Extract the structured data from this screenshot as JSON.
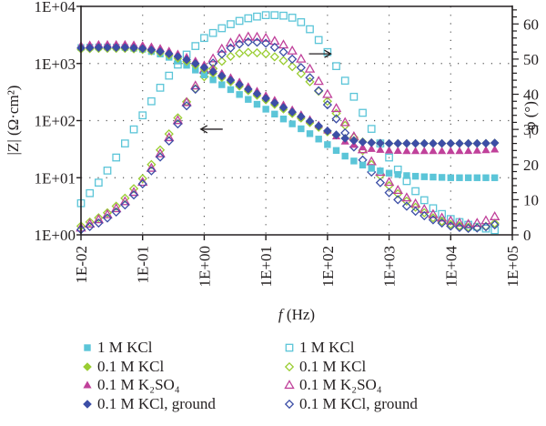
{
  "chart_data": {
    "type": "scatter",
    "title": "",
    "xlabel": "f (Hz)",
    "ylabel_left": "|Z| (Ω·cm²)",
    "ylabel_right": "−φ (°)",
    "x_scale": "log",
    "y_left_scale": "log",
    "xlim": [
      0.01,
      100000
    ],
    "ylim_left": [
      1,
      10000
    ],
    "ylim_right": [
      0,
      65
    ],
    "x_tick_labels": [
      "1E-02",
      "1E-01",
      "1E+00",
      "1E+01",
      "1E+02",
      "1E+03",
      "1E+04",
      "1E+05"
    ],
    "y_left_tick_labels": [
      "1E+00",
      "1E+01",
      "1E+02",
      "1E+03",
      "1E+04"
    ],
    "y_right_tick_labels": [
      "0",
      "10",
      "20",
      "30",
      "40",
      "50",
      "60"
    ],
    "y_right_ticks": [
      0,
      10,
      20,
      30,
      40,
      50,
      60
    ],
    "grid": "dotted",
    "annotations": [
      {
        "text": "←",
        "meaning": "arrow pointing to left axis (|Z| curves)",
        "at_log_f": 0.3,
        "at_log_z": 1.85
      },
      {
        "text": "→",
        "meaning": "arrow pointing to right axis (phase curves)",
        "at_log_f": 1.7,
        "at_phi": 51.5
      }
    ],
    "log_f": [
      -2.0,
      -1.75,
      -1.5,
      -1.25,
      -1.0,
      -0.75,
      -0.5,
      -0.25,
      0.0,
      0.25,
      0.5,
      0.75,
      1.0,
      1.25,
      1.5,
      1.75,
      2.0,
      2.25,
      2.5,
      2.75,
      3.0,
      3.25,
      3.5,
      3.75,
      4.0,
      4.25,
      4.5,
      4.75
    ],
    "series": [
      {
        "name": "1 M KCl",
        "quantity": "|Z|",
        "axis": "left",
        "marker": "square-filled",
        "color": "#5bc5d8",
        "log_values": [
          3.28,
          3.29,
          3.29,
          3.28,
          3.25,
          3.18,
          3.08,
          2.95,
          2.8,
          2.65,
          2.5,
          2.35,
          2.2,
          2.05,
          1.9,
          1.75,
          1.58,
          1.4,
          1.25,
          1.15,
          1.08,
          1.04,
          1.02,
          1.01,
          1.0,
          1.0,
          1.0,
          1.0
        ]
      },
      {
        "name": "0.1 M KCl",
        "quantity": "|Z|",
        "axis": "left",
        "marker": "diamond-filled",
        "color": "#9acd32",
        "log_values": [
          3.25,
          3.26,
          3.26,
          3.26,
          3.24,
          3.2,
          3.12,
          3.02,
          2.9,
          2.77,
          2.64,
          2.5,
          2.36,
          2.22,
          2.08,
          1.94,
          1.8,
          1.7,
          1.64,
          1.61,
          1.6,
          1.6,
          1.6,
          1.6,
          1.6,
          1.6,
          1.6,
          1.61
        ]
      },
      {
        "name": "0.1 M K2SO4",
        "quantity": "|Z|",
        "axis": "left",
        "marker": "triangle-filled",
        "color": "#c0419a",
        "log_values": [
          3.32,
          3.34,
          3.34,
          3.34,
          3.32,
          3.28,
          3.2,
          3.1,
          2.98,
          2.85,
          2.72,
          2.58,
          2.44,
          2.3,
          2.15,
          2.0,
          1.83,
          1.65,
          1.55,
          1.5,
          1.48,
          1.47,
          1.47,
          1.47,
          1.47,
          1.47,
          1.48,
          1.5
        ]
      },
      {
        "name": "0.1 M KCl, ground",
        "quantity": "|Z|",
        "axis": "left",
        "marker": "diamond-filled",
        "color": "#3c4ea6",
        "log_values": [
          3.27,
          3.28,
          3.28,
          3.28,
          3.26,
          3.22,
          3.15,
          3.05,
          2.93,
          2.8,
          2.67,
          2.53,
          2.39,
          2.25,
          2.11,
          1.97,
          1.82,
          1.7,
          1.63,
          1.61,
          1.6,
          1.6,
          1.6,
          1.6,
          1.6,
          1.6,
          1.6,
          1.61
        ]
      },
      {
        "name": "1 M KCl",
        "quantity": "-phi",
        "axis": "right",
        "marker": "square-open",
        "color": "#5bc5d8",
        "values": [
          9,
          14,
          20,
          27,
          34,
          41,
          47,
          52,
          56,
          58.5,
          60.5,
          61.8,
          62.5,
          62.5,
          61.5,
          58,
          52,
          45,
          37,
          29,
          22,
          16,
          11,
          7,
          4.5,
          3,
          2,
          1.2
        ]
      },
      {
        "name": "0.1 M KCl",
        "quantity": "-phi",
        "axis": "right",
        "marker": "diamond-open",
        "color": "#9acd32",
        "values": [
          2.5,
          4.5,
          7,
          11,
          16,
          23,
          31,
          39,
          45,
          49,
          51.5,
          52,
          51.5,
          50,
          47,
          43,
          38,
          32,
          26,
          19,
          14,
          10,
          7,
          4.5,
          3,
          2.2,
          2,
          3.5
        ]
      },
      {
        "name": "0.1 M K2SO4",
        "quantity": "-phi",
        "axis": "right",
        "marker": "triangle-open",
        "color": "#c0419a",
        "values": [
          2,
          4,
          6.5,
          10,
          15,
          22,
          30,
          39,
          47,
          52.5,
          55.5,
          56.5,
          56,
          54.5,
          51.5,
          46.5,
          40,
          33,
          26,
          20,
          15,
          11,
          8,
          5.5,
          4,
          3,
          3.5,
          5.5
        ]
      },
      {
        "name": "0.1 M KCl, ground",
        "quantity": "-phi",
        "axis": "right",
        "marker": "diamond-open",
        "color": "#3c4ea6",
        "values": [
          1.5,
          3,
          5.5,
          9,
          14.5,
          21,
          29,
          38,
          46,
          51,
          54,
          55,
          54.5,
          52.5,
          49,
          44,
          37,
          30,
          23,
          17,
          12,
          8.5,
          6,
          4,
          2.5,
          1.8,
          2,
          3
        ]
      }
    ],
    "legend": {
      "placement": "bottom",
      "columns": 2,
      "entries": [
        {
          "label": "1 M KCl",
          "marker": "square-filled",
          "color": "#5bc5d8"
        },
        {
          "label": "1 M KCl",
          "marker": "square-open",
          "color": "#5bc5d8"
        },
        {
          "label": "0.1 M KCl",
          "marker": "diamond-filled",
          "color": "#9acd32"
        },
        {
          "label": "0.1 M KCl",
          "marker": "diamond-open",
          "color": "#9acd32"
        },
        {
          "label": "0.1 M K₂SO₄",
          "marker": "triangle-filled",
          "color": "#c0419a"
        },
        {
          "label": "0.1 M K₂SO₄",
          "marker": "triangle-open",
          "color": "#c0419a"
        },
        {
          "label": "0.1 M KCl, ground",
          "marker": "diamond-filled",
          "color": "#3c4ea6"
        },
        {
          "label": "0.1 M KCl, ground",
          "marker": "diamond-open",
          "color": "#3c4ea6"
        }
      ]
    }
  }
}
